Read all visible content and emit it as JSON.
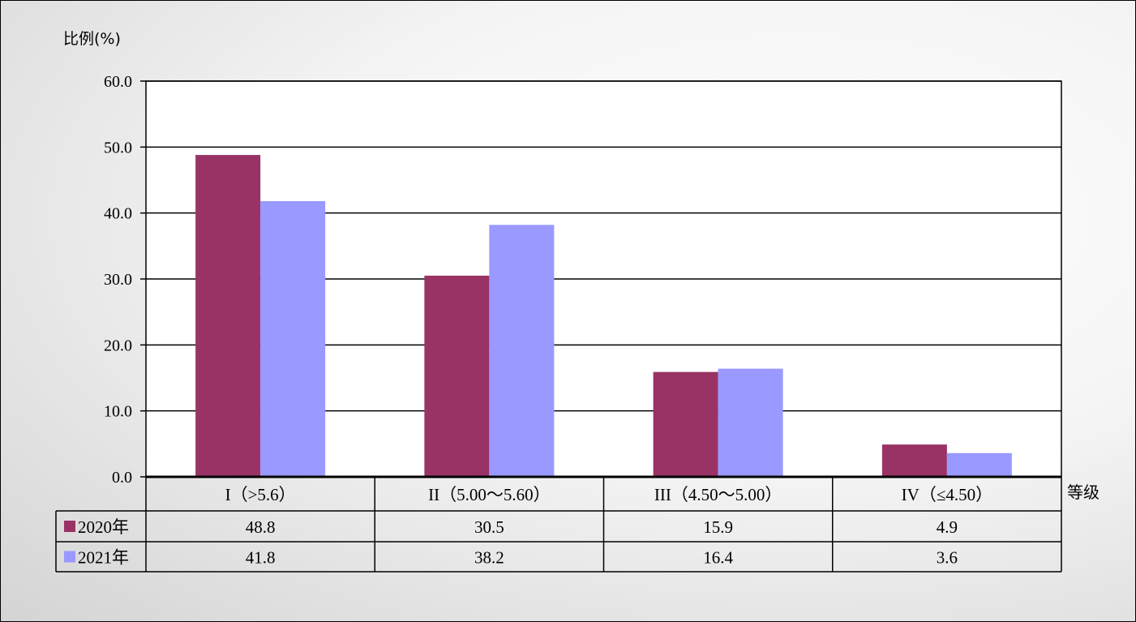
{
  "chart_data": {
    "type": "bar",
    "ylabel": "比例(%)",
    "xlabel": "等级",
    "ylim": [
      0,
      60
    ],
    "yticks": [
      "0.0",
      "10.0",
      "20.0",
      "30.0",
      "40.0",
      "50.0",
      "60.0"
    ],
    "grid": true,
    "legend": "data-table-left",
    "categories": [
      "I（>5.6）",
      "II（5.00～5.60）",
      "III（4.50～5.00）",
      "IV（≤4.50）"
    ],
    "series": [
      {
        "name": "2020年",
        "color": "#993366",
        "values": [
          48.8,
          30.5,
          15.9,
          4.9
        ],
        "labels": [
          "48.8",
          "30.5",
          "15.9",
          "4.9"
        ]
      },
      {
        "name": "2021年",
        "color": "#9999FF",
        "values": [
          41.8,
          38.2,
          16.4,
          3.6
        ],
        "labels": [
          "41.8",
          "38.2",
          "16.4",
          "3.6"
        ]
      }
    ]
  }
}
